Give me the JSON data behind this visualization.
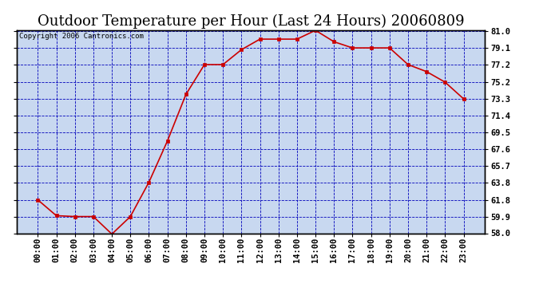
{
  "title": "Outdoor Temperature per Hour (Last 24 Hours) 20060809",
  "copyright_text": "Copyright 2006 Cantronics.com",
  "hours": [
    "00:00",
    "01:00",
    "02:00",
    "03:00",
    "04:00",
    "05:00",
    "06:00",
    "07:00",
    "08:00",
    "09:00",
    "10:00",
    "11:00",
    "12:00",
    "13:00",
    "14:00",
    "15:00",
    "16:00",
    "17:00",
    "18:00",
    "19:00",
    "20:00",
    "21:00",
    "22:00",
    "23:00"
  ],
  "temps": [
    61.8,
    60.0,
    59.9,
    59.9,
    57.9,
    59.9,
    63.8,
    68.5,
    73.8,
    77.2,
    77.2,
    78.9,
    80.1,
    80.1,
    80.1,
    81.1,
    79.8,
    79.1,
    79.1,
    79.1,
    77.2,
    76.4,
    75.2,
    73.3
  ],
  "line_color": "#cc0000",
  "marker_color": "#cc0000",
  "background_color": "#ffffff",
  "plot_bg_color": "#c8d8f0",
  "grid_color": "#0000bb",
  "title_fontsize": 13,
  "copyright_fontsize": 6.5,
  "tick_fontsize": 7.5,
  "ylim": [
    58.0,
    81.1
  ],
  "yticks": [
    58.0,
    59.9,
    61.8,
    63.8,
    65.7,
    67.6,
    69.5,
    71.4,
    73.3,
    75.2,
    77.2,
    79.1,
    81.0
  ],
  "title_color": "#000000",
  "border_color": "#000000"
}
